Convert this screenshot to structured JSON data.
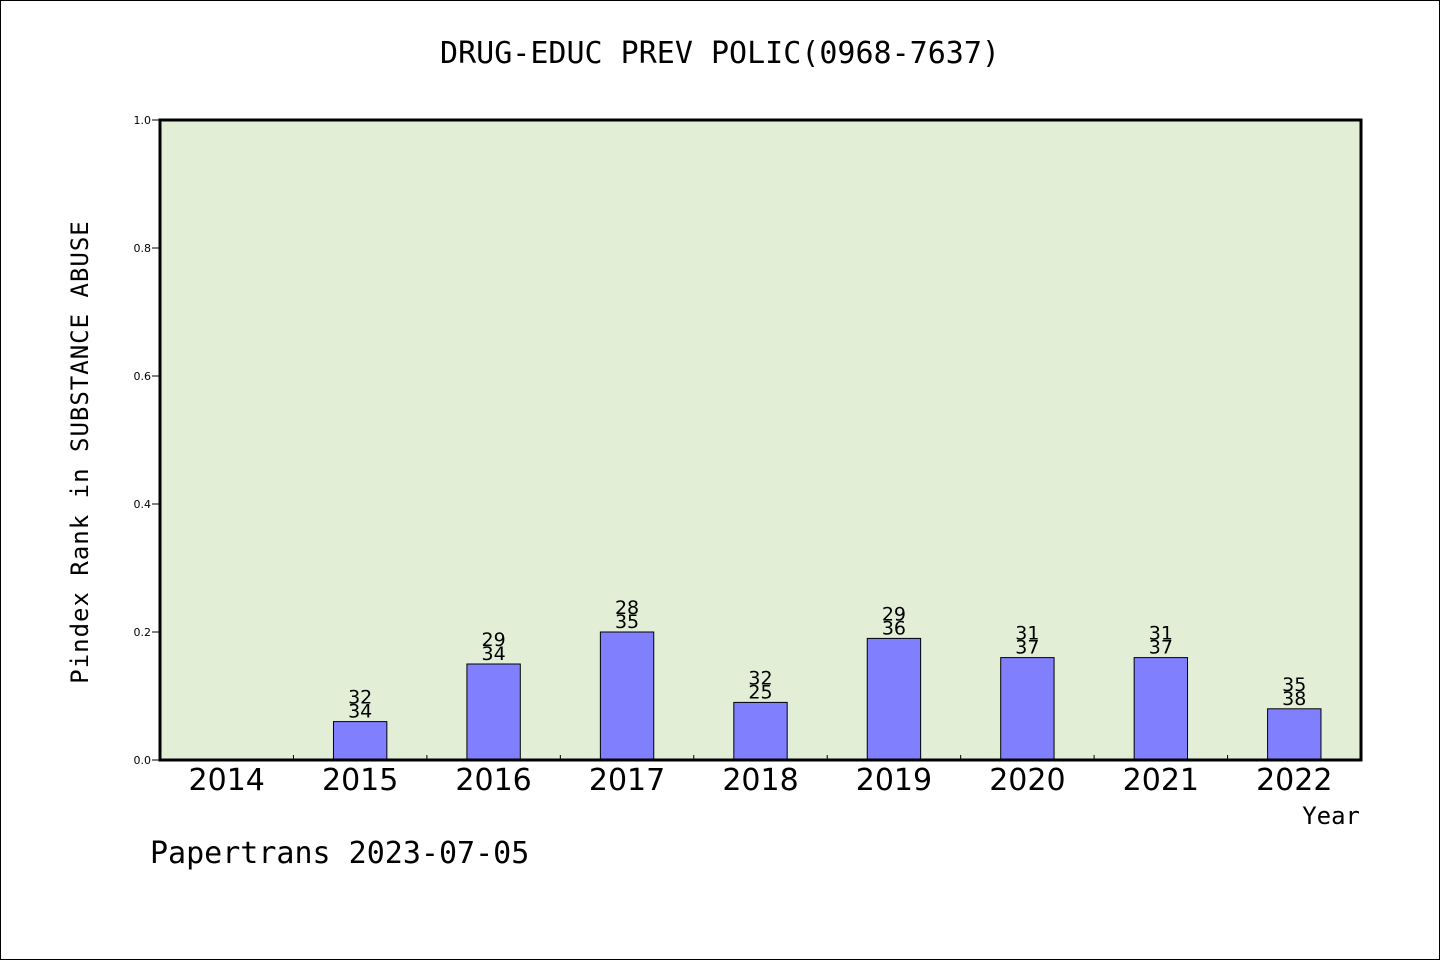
{
  "chart_data": {
    "type": "bar",
    "title": "DRUG-EDUC PREV POLIC(0968-7637)",
    "xlabel": "Year",
    "ylabel": "Pindex Rank in SUBSTANCE ABUSE",
    "ylim": [
      0,
      1.0
    ],
    "yticks": [
      "0.0",
      "0.2",
      "0.4",
      "0.6",
      "0.8",
      "1.0"
    ],
    "categories": [
      "2014",
      "2015",
      "2016",
      "2017",
      "2018",
      "2019",
      "2020",
      "2021",
      "2022"
    ],
    "values": [
      0,
      0.06,
      0.15,
      0.2,
      0.09,
      0.19,
      0.16,
      0.16,
      0.08
    ],
    "labels_top": [
      "",
      "32",
      "29",
      "28",
      "32",
      "29",
      "31",
      "31",
      "35"
    ],
    "labels_bottom": [
      "",
      "34",
      "34",
      "35",
      "25",
      "36",
      "37",
      "37",
      "38"
    ],
    "grid": false,
    "colors": {
      "plot_bg": "#e2efd6",
      "bar": "#8080ff"
    }
  },
  "footer": "Papertrans 2023-07-05"
}
